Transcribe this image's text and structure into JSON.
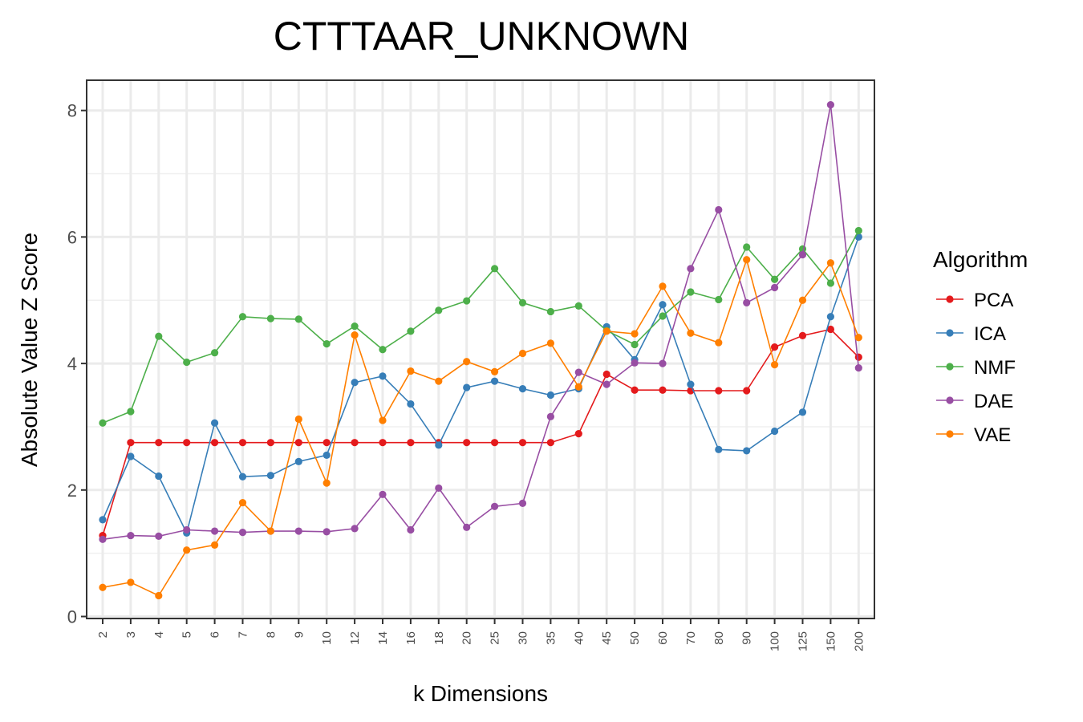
{
  "chart_data": {
    "type": "line",
    "title": "CTTTAAR_UNKNOWN",
    "xlabel": "k Dimensions",
    "ylabel": "Absolute Value Z Score",
    "ylim": [
      0,
      8.4
    ],
    "yticks": [
      "0",
      "2",
      "4",
      "6",
      "8"
    ],
    "grid": true,
    "legend_title": "Algorithm",
    "legend_position": "right",
    "categories": [
      "2",
      "3",
      "4",
      "5",
      "6",
      "7",
      "8",
      "9",
      "10",
      "12",
      "14",
      "16",
      "18",
      "20",
      "25",
      "30",
      "35",
      "40",
      "45",
      "50",
      "60",
      "70",
      "80",
      "90",
      "100",
      "125",
      "150",
      "200"
    ],
    "series": [
      {
        "name": "PCA",
        "color": "#E41A1C",
        "values": [
          1.28,
          2.75,
          2.75,
          2.75,
          2.75,
          2.75,
          2.75,
          2.75,
          2.75,
          2.75,
          2.75,
          2.75,
          2.75,
          2.75,
          2.75,
          2.75,
          2.75,
          2.89,
          3.83,
          3.58,
          3.58,
          3.57,
          3.57,
          3.57,
          4.26,
          4.44,
          4.54,
          4.1
        ]
      },
      {
        "name": "ICA",
        "color": "#377EB8",
        "values": [
          1.53,
          2.53,
          2.22,
          1.32,
          3.06,
          2.21,
          2.23,
          2.45,
          2.55,
          3.7,
          3.8,
          3.36,
          2.71,
          3.62,
          3.72,
          3.6,
          3.5,
          3.6,
          4.58,
          4.06,
          4.93,
          3.67,
          2.64,
          2.62,
          2.93,
          3.23,
          4.74,
          6.0
        ]
      },
      {
        "name": "NMF",
        "color": "#4DAF4A",
        "values": [
          3.06,
          3.24,
          4.43,
          4.02,
          4.17,
          4.74,
          4.71,
          4.7,
          4.31,
          4.59,
          4.22,
          4.51,
          4.84,
          4.99,
          5.5,
          4.96,
          4.82,
          4.91,
          4.52,
          4.3,
          4.75,
          5.13,
          5.01,
          5.84,
          5.33,
          5.81,
          5.27,
          6.1
        ]
      },
      {
        "name": "DAE",
        "color": "#984EA3",
        "values": [
          1.22,
          1.28,
          1.27,
          1.37,
          1.35,
          1.33,
          1.35,
          1.35,
          1.34,
          1.39,
          1.93,
          1.37,
          2.03,
          1.41,
          1.74,
          1.79,
          3.16,
          3.86,
          3.67,
          4.01,
          4.0,
          5.5,
          6.43,
          4.96,
          5.2,
          5.72,
          8.09,
          3.93
        ]
      },
      {
        "name": "VAE",
        "color": "#FF7F00",
        "values": [
          0.46,
          0.54,
          0.33,
          1.05,
          1.13,
          1.8,
          1.35,
          3.12,
          2.11,
          4.45,
          3.1,
          3.88,
          3.72,
          4.03,
          3.87,
          4.16,
          4.32,
          3.63,
          4.51,
          4.47,
          5.22,
          4.48,
          4.33,
          5.64,
          3.98,
          5.0,
          5.59,
          4.41
        ]
      }
    ]
  }
}
